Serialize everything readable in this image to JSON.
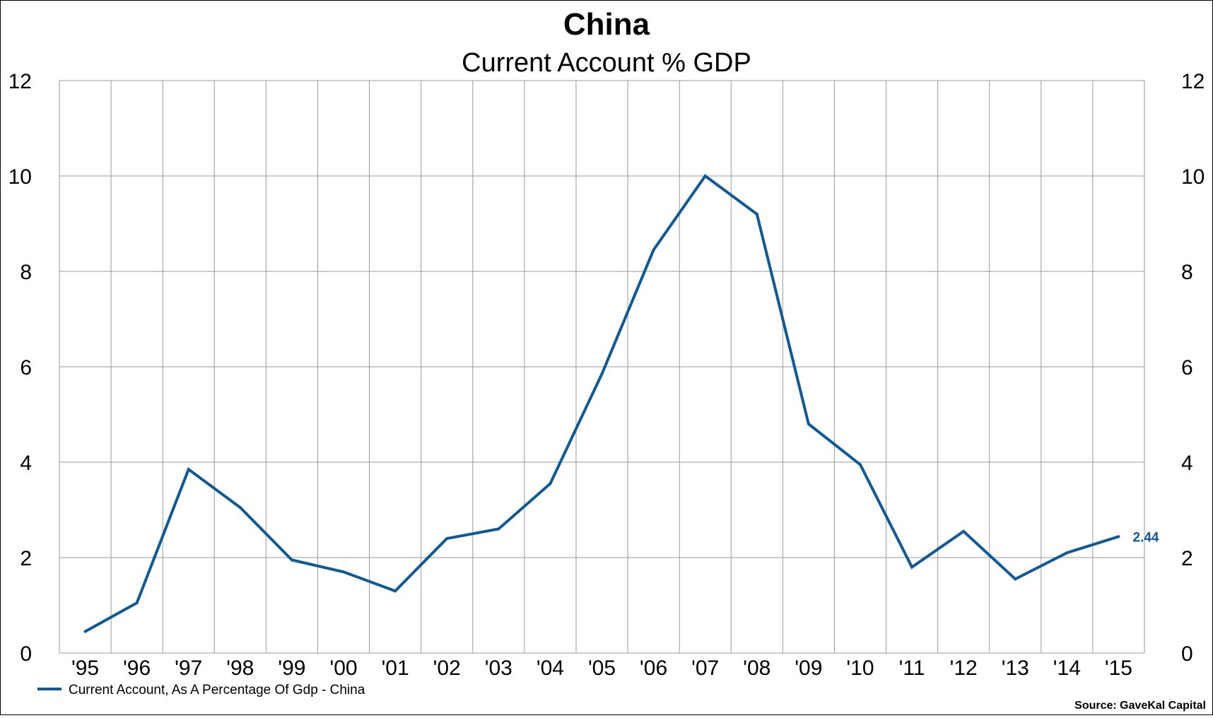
{
  "chart_data": {
    "type": "line",
    "title": "China",
    "subtitle": "Current Account % GDP",
    "categories": [
      "'95",
      "'96",
      "'97",
      "'98",
      "'99",
      "'00",
      "'01",
      "'02",
      "'03",
      "'04",
      "'05",
      "'06",
      "'07",
      "'08",
      "'09",
      "'10",
      "'11",
      "'12",
      "'13",
      "'14",
      "'15"
    ],
    "series": [
      {
        "name": "Current Account, As A Percentage Of Gdp - China",
        "color": "#0f5a96",
        "values": [
          0.45,
          1.05,
          3.85,
          3.05,
          1.95,
          1.7,
          1.3,
          2.4,
          2.6,
          3.55,
          5.85,
          8.45,
          10.0,
          9.2,
          4.8,
          3.95,
          1.8,
          2.55,
          1.55,
          2.1,
          2.44
        ]
      }
    ],
    "last_value_label": "2.44",
    "ylim": [
      0,
      12
    ],
    "yticks": [
      0,
      2,
      4,
      6,
      8,
      10,
      12
    ],
    "yaxis_left": true,
    "yaxis_right": true,
    "grid": true,
    "legend_position": "bottom-left",
    "source": "Source: GaveKal Capital"
  }
}
